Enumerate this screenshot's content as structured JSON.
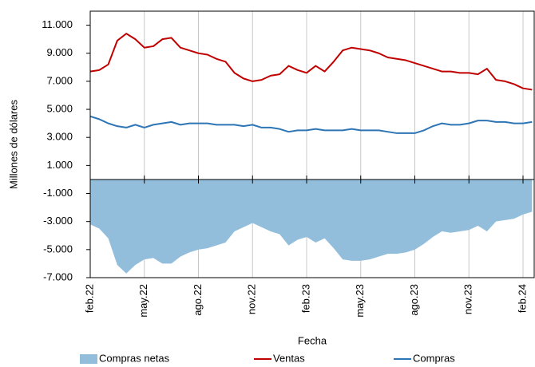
{
  "chart_data": {
    "type": "line",
    "x_label": "Fecha",
    "y_label": "Millones de dólares",
    "categories": [
      "feb.22",
      null,
      null,
      null,
      null,
      null,
      "may.22",
      null,
      null,
      null,
      null,
      null,
      "ago.22",
      null,
      null,
      null,
      null,
      null,
      "nov.22",
      null,
      null,
      null,
      null,
      null,
      "feb.23",
      null,
      null,
      null,
      null,
      null,
      "may.23",
      null,
      null,
      null,
      null,
      null,
      "ago.23",
      null,
      null,
      null,
      null,
      null,
      "nov.23",
      null,
      null,
      null,
      null,
      null,
      "feb.24",
      null
    ],
    "series": [
      {
        "name": "Compras netas",
        "type": "area",
        "color": "#93bedb",
        "values": [
          -3200,
          -3500,
          -4200,
          -6100,
          -6700,
          -6100,
          -5700,
          -5600,
          -6000,
          -6000,
          -5500,
          -5200,
          -5000,
          -4900,
          -4700,
          -4500,
          -3700,
          -3400,
          -3100,
          -3400,
          -3700,
          -3900,
          -4700,
          -4300,
          -4100,
          -4500,
          -4200,
          -4900,
          -5700,
          -5800,
          -5800,
          -5700,
          -5500,
          -5300,
          -5300,
          -5200,
          -5000,
          -4600,
          -4100,
          -3700,
          -3800,
          -3700,
          -3600,
          -3300,
          -3700,
          -3000,
          -2900,
          -2800,
          -2500,
          -2300
        ]
      },
      {
        "name": "Ventas",
        "type": "line",
        "color": "#c00000",
        "values": [
          7700,
          7800,
          8200,
          9900,
          10400,
          10000,
          9400,
          9500,
          10000,
          10100,
          9400,
          9200,
          9000,
          8900,
          8600,
          8400,
          7600,
          7200,
          7000,
          7100,
          7400,
          7500,
          8100,
          7800,
          7600,
          8100,
          7700,
          8400,
          9200,
          9400,
          9300,
          9200,
          9000,
          8700,
          8600,
          8500,
          8300,
          8100,
          7900,
          7700,
          7700,
          7600,
          7600,
          7500,
          7900,
          7100,
          7000,
          6800,
          6500,
          6400
        ]
      },
      {
        "name": "Compras",
        "type": "line",
        "color": "#2e75b6",
        "values": [
          4500,
          4300,
          4000,
          3800,
          3700,
          3900,
          3700,
          3900,
          4000,
          4100,
          3900,
          4000,
          4000,
          4000,
          3900,
          3900,
          3900,
          3800,
          3900,
          3700,
          3700,
          3600,
          3400,
          3500,
          3500,
          3600,
          3500,
          3500,
          3500,
          3600,
          3500,
          3500,
          3500,
          3400,
          3300,
          3300,
          3300,
          3500,
          3800,
          4000,
          3900,
          3900,
          4000,
          4200,
          4200,
          4100,
          4100,
          4000,
          4000,
          4100
        ]
      }
    ],
    "ylim": [
      -7000,
      12000
    ],
    "yticks": [
      {
        "value": -7000,
        "label": "-7.000"
      },
      {
        "value": -5000,
        "label": "-5.000"
      },
      {
        "value": -3000,
        "label": "-3.000"
      },
      {
        "value": -1000,
        "label": "-1.000"
      },
      {
        "value": 1000,
        "label": "1.000"
      },
      {
        "value": 3000,
        "label": "3.000"
      },
      {
        "value": 5000,
        "label": "5.000"
      },
      {
        "value": 7000,
        "label": "7.000"
      },
      {
        "value": 9000,
        "label": "9.000"
      },
      {
        "value": 11000,
        "label": "11.000"
      }
    ],
    "grid": "x"
  }
}
